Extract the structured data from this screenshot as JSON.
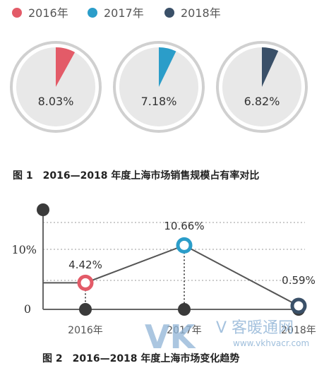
{
  "figure1": {
    "caption": "图 1　2016—2018 年度上海市场销售规模占有率对比",
    "legend": [
      {
        "label": "2016年",
        "color": "#e35b68"
      },
      {
        "label": "2017年",
        "color": "#2b9dc9"
      },
      {
        "label": "2018年",
        "color": "#3a5068"
      }
    ],
    "pie_labels": [
      "8.03%",
      "7.18%",
      "6.82%"
    ]
  },
  "figure2": {
    "caption": "图 2　2016—2018 年度上海市场变化趋势",
    "y_ticks": [
      "10%",
      "0"
    ],
    "data_labels": [
      "4.42%",
      "10.66%",
      "0.59%"
    ],
    "x_labels": [
      "2016年",
      "2017年",
      "2018年"
    ]
  },
  "watermark": {
    "logo_text": "VK",
    "brand_text": "V 客暖通网",
    "url": "www.vkhvacr.com"
  },
  "chart_data": [
    {
      "type": "pie",
      "title": "图 1　2016—2018 年度上海市场销售规模占有率对比",
      "categories": [
        "2016年",
        "2017年",
        "2018年"
      ],
      "values": [
        8.03,
        7.18,
        6.82
      ],
      "unit": "%",
      "colors": [
        "#e35b68",
        "#2b9dc9",
        "#3a5068"
      ],
      "remainder_color": "#e8e8e8",
      "legend_position": "top-left"
    },
    {
      "type": "line",
      "title": "图 2　2016—2018 年度上海市场变化趋势",
      "categories": [
        "2016年",
        "2017年",
        "2018年"
      ],
      "values": [
        4.42,
        10.66,
        0.59
      ],
      "unit": "%",
      "ylim": [
        0,
        17
      ],
      "y_ticks": [
        0,
        10
      ],
      "grid": true,
      "colors": [
        "#e35b68",
        "#2b9dc9",
        "#3a5068"
      ],
      "line_color": "#555555"
    }
  ]
}
